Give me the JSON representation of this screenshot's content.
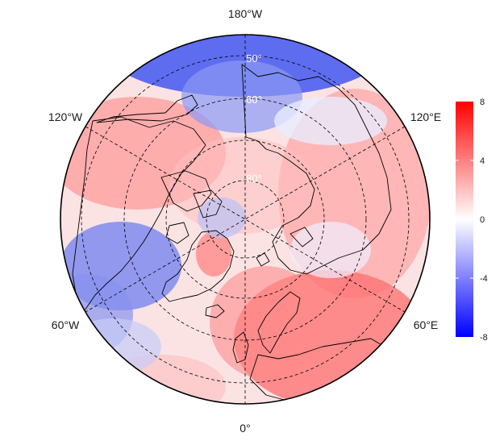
{
  "map": {
    "projection": "north-polar-stereographic",
    "center_lon_bottom": "0°",
    "longitude_labels": {
      "top": "180°W",
      "upper_left": "120°W",
      "upper_right": "120°E",
      "lower_left": "60°W",
      "lower_right": "60°E",
      "bottom": "0°"
    },
    "latitude_labels": [
      "50°",
      "60°",
      "80°"
    ]
  },
  "colorbar": {
    "ticks": [
      "8",
      "4",
      "0",
      "-4",
      "-8"
    ],
    "min": -8,
    "max": 8,
    "colors": {
      "high": "#ff0000",
      "mid": "#ffffff",
      "low": "#0000ff"
    }
  }
}
